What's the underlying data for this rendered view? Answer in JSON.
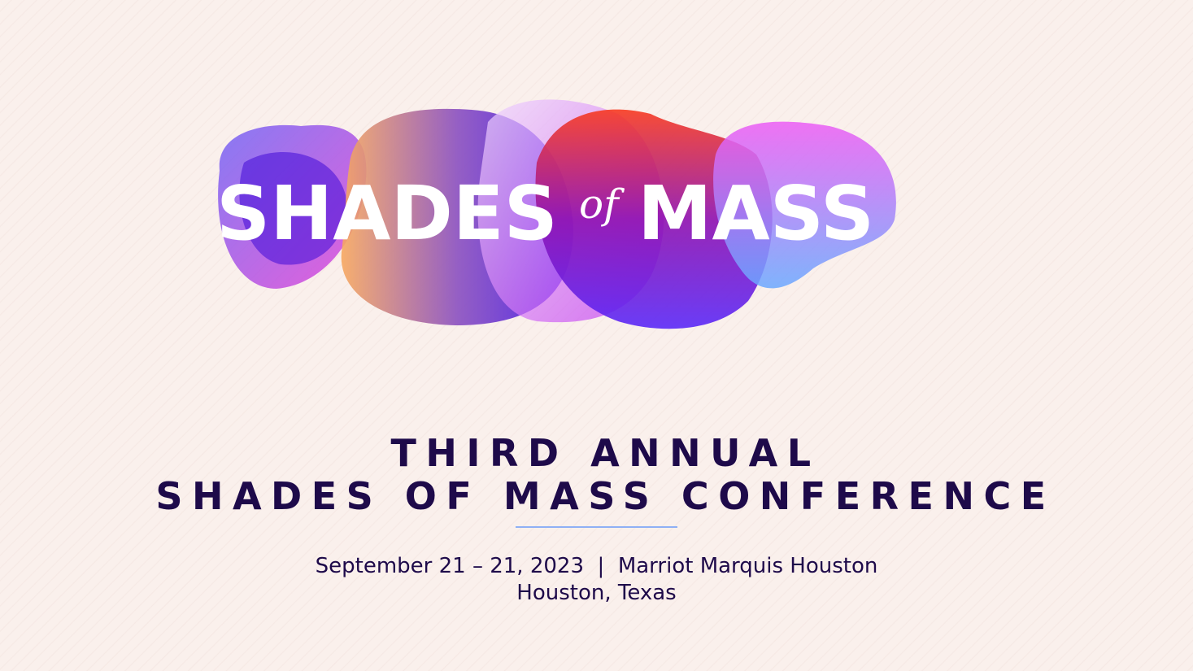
{
  "logo": {
    "word1": "SHADES",
    "word2": "of",
    "word3": "MASS"
  },
  "heading": {
    "line1": "THIRD ANNUAL",
    "line2": "SHADES OF MASS CONFERENCE"
  },
  "details": {
    "line1": "September 21 – 21, 2023  |  Marriot Marquis Houston",
    "line2": "Houston, Texas"
  },
  "colors": {
    "background": "#faf0ec",
    "heading": "#1e0a4a",
    "divider": "#8fb0f5"
  }
}
